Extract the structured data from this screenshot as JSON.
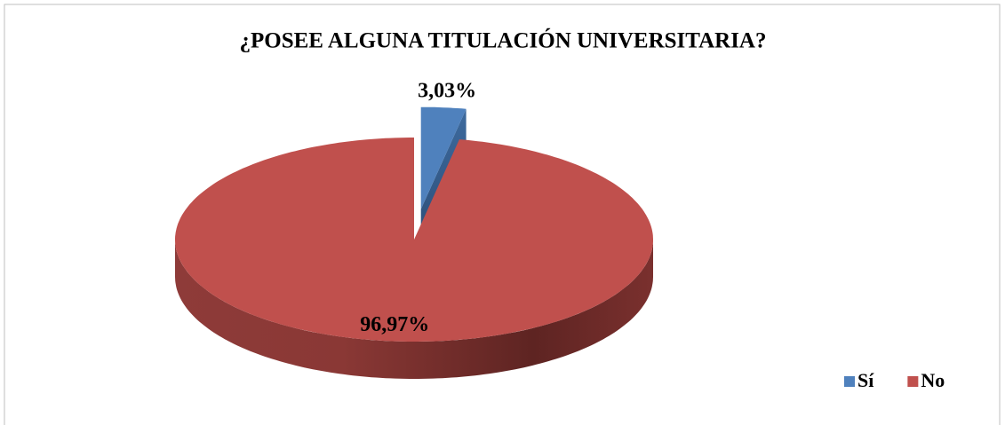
{
  "chart_data": {
    "type": "pie",
    "title": "¿POSEE ALGUNA TITULACIÓN UNIVERSITARIA?",
    "categories": [
      "Sí",
      "No"
    ],
    "values": [
      3.03,
      96.97
    ],
    "value_labels": [
      "3,03%",
      "96,97%"
    ],
    "colors": [
      "#4f81bd",
      "#c0504d"
    ],
    "exploded": [
      true,
      false
    ],
    "three_d": true,
    "legend": "bottom-right"
  }
}
